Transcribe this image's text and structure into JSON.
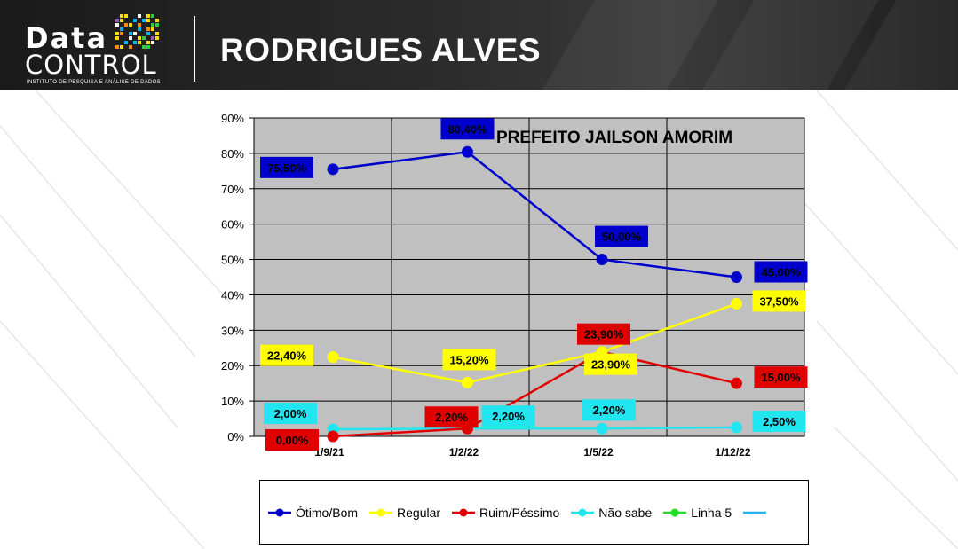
{
  "header": {
    "logo_line1": "Data",
    "logo_line2": "CONTROL",
    "logo_tagline": "INSTITUTO DE PESQUISA E ANÁLISE DE DADOS",
    "title": "RODRIGUES ALVES"
  },
  "chart_data": {
    "type": "line",
    "title": "PREFEITO JAILSON AMORIM",
    "categories": [
      "1/9/21",
      "1/2/22",
      "1/5/22",
      "1/12/22"
    ],
    "y_ticks": [
      "0%",
      "10%",
      "20%",
      "30%",
      "40%",
      "50%",
      "60%",
      "70%",
      "80%",
      "90%"
    ],
    "ylim": [
      0,
      90
    ],
    "grid": true,
    "legend_position": "bottom",
    "series": [
      {
        "name": "Ótimo/Bom",
        "color": "#0000cc",
        "values": [
          75.5,
          80.4,
          50.0,
          45.0
        ],
        "labels": [
          "75,50%",
          "80,40%",
          "50,00%",
          "45,00%"
        ]
      },
      {
        "name": "Regular",
        "color": "#ffff00",
        "values": [
          22.4,
          15.2,
          23.9,
          37.5
        ],
        "labels": [
          "22,40%",
          "15,20%",
          "23,90%",
          "37,50%"
        ]
      },
      {
        "name": "Ruim/Péssimo",
        "color": "#e00000",
        "values": [
          0.0,
          2.2,
          23.9,
          15.0
        ],
        "labels": [
          "0,00%",
          "2,20%",
          "23,90%",
          "15,00%"
        ]
      },
      {
        "name": "Não sabe",
        "color": "#22e5f0",
        "values": [
          2.0,
          2.2,
          2.2,
          2.5
        ],
        "labels": [
          "2,00%",
          "2,20%",
          "2,20%",
          "2,50%"
        ]
      }
    ],
    "legend": [
      {
        "name": "Ótimo/Bom",
        "color": "#0000cc",
        "marker": true
      },
      {
        "name": "Regular",
        "color": "#ffff00",
        "marker": true
      },
      {
        "name": "Ruim/Péssimo",
        "color": "#e00000",
        "marker": true
      },
      {
        "name": "Não sabe",
        "color": "#22e5f0",
        "marker": true
      },
      {
        "name": "Linha 5",
        "color": "#22dd22",
        "marker": true
      },
      {
        "name": "",
        "color": "#22b5f0",
        "marker": false
      }
    ]
  }
}
